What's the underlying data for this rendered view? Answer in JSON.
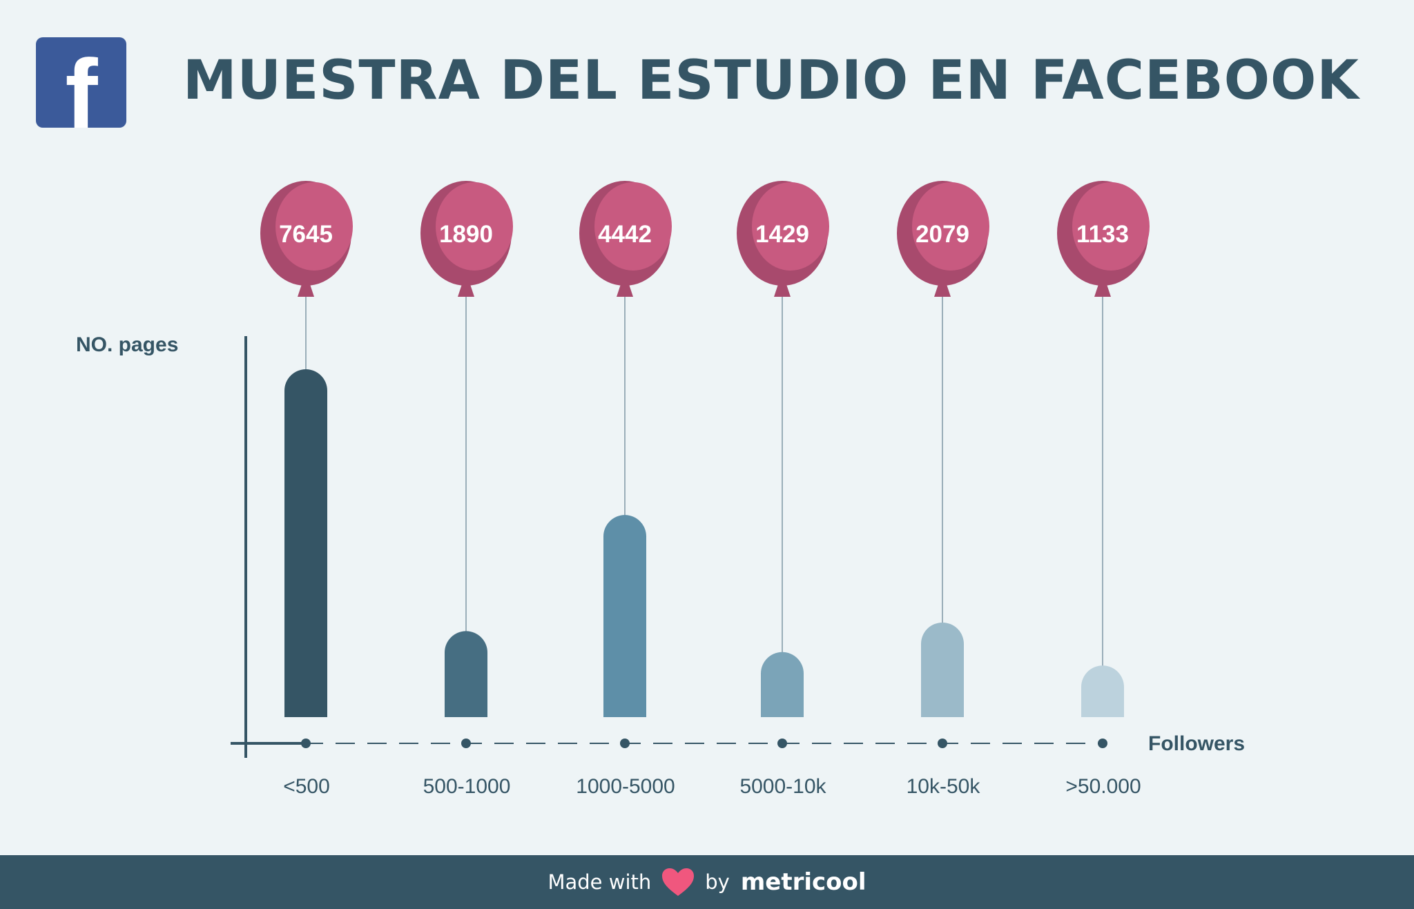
{
  "header": {
    "title": "MUESTRA DEL ESTUDIO EN FACEBOOK",
    "logo_icon": "facebook-icon",
    "logo_letter": "f",
    "logo_color": "#3b5a9a"
  },
  "chart_data": {
    "type": "bar",
    "title": "MUESTRA DEL ESTUDIO EN FACEBOOK",
    "ylabel": "NO. pages",
    "xlabel": "Followers",
    "categories": [
      "<500",
      "500-1000",
      "1000-5000",
      "5000-10k",
      "10k-50k",
      ">50.000"
    ],
    "values": [
      7645,
      1890,
      4442,
      1429,
      2079,
      1133
    ],
    "bar_colors": [
      "#355565",
      "#466e82",
      "#5e8fa8",
      "#7ba4b8",
      "#9bbac9",
      "#bcd2dd"
    ],
    "balloon_color": "#c85a80",
    "ylim": [
      0,
      8000
    ],
    "grid": false,
    "legend": "none"
  },
  "footer": {
    "made_with": "Made with",
    "by": "by",
    "brand": "metricool",
    "heart_icon": "heart-icon",
    "heart_color": "#f0577e"
  }
}
